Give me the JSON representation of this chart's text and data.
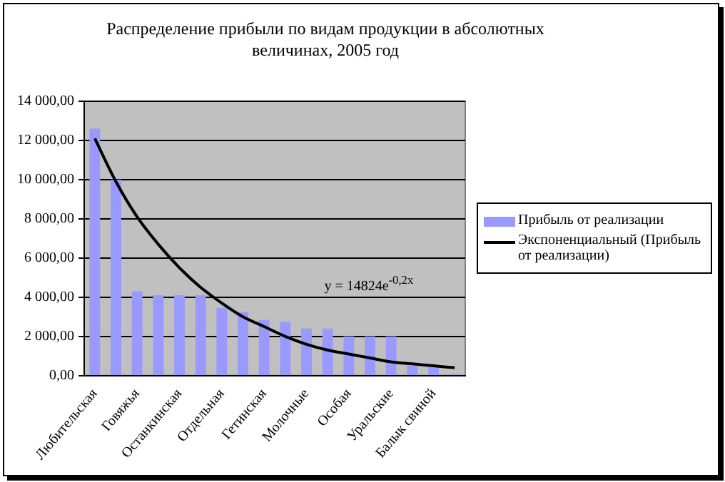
{
  "chart_data": {
    "type": "bar",
    "title": "Распределение прибыли по видам продукции в абсолютных величинах, 2005 год",
    "categories": [
      "Любительская",
      null,
      "Говяжья",
      null,
      "Останкинская",
      null,
      "Отдельная",
      null,
      "Гетинская",
      null,
      "Молочные",
      null,
      "Особая",
      null,
      "Уральские",
      null,
      "Балык свиной",
      null
    ],
    "series": [
      {
        "name": "Прибыль от реализации",
        "color": "#9999ff",
        "values": [
          12600,
          10000,
          4300,
          4100,
          4100,
          4100,
          3450,
          3250,
          2850,
          2750,
          2400,
          2400,
          2000,
          2000,
          2000,
          500,
          450,
          80
        ]
      },
      {
        "name": "Экспоненциальный (Прибыль от реализации)",
        "type": "line",
        "color": "#000000",
        "marker": "none",
        "values": [
          12100,
          9900,
          8100,
          6700,
          5500,
          4500,
          3700,
          3000,
          2500,
          2000,
          1600,
          1300,
          1100,
          900,
          700,
          600,
          500,
          400
        ]
      }
    ],
    "ylim": [
      0,
      14000
    ],
    "yticks": [
      {
        "value": 0,
        "label": "0,00"
      },
      {
        "value": 2000,
        "label": "2 000,00"
      },
      {
        "value": 4000,
        "label": "4 000,00"
      },
      {
        "value": 6000,
        "label": "6 000,00"
      },
      {
        "value": 8000,
        "label": "8 000,00"
      },
      {
        "value": 10000,
        "label": "10 000,00"
      },
      {
        "value": 12000,
        "label": "12 000,00"
      },
      {
        "value": 14000,
        "label": "14 000,00"
      }
    ],
    "grid": "y",
    "legend": "right",
    "annotations": [
      "y = 14824e$^{-0,2x}$"
    ]
  }
}
